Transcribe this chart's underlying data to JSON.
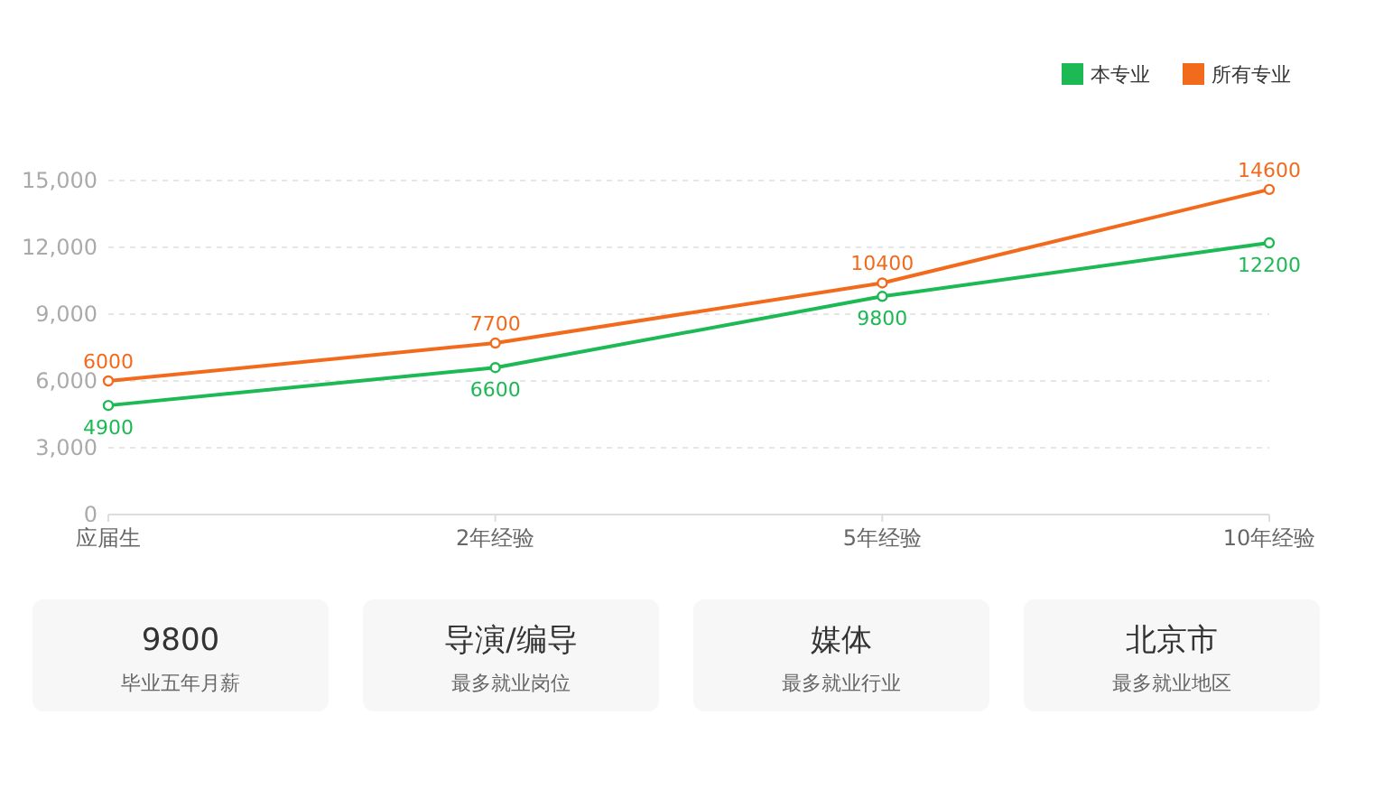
{
  "chart_data": [
    {
      "type": "line",
      "categories": [
        "应届生",
        "2年经验",
        "5年经验",
        "10年经验"
      ],
      "series": [
        {
          "name": "本专业",
          "color": "#1db954",
          "values": [
            4900,
            6600,
            9800,
            12200
          ]
        },
        {
          "name": "所有专业",
          "color": "#f26b1d",
          "values": [
            6000,
            7700,
            10400,
            14600
          ]
        }
      ],
      "ylim": [
        0,
        15000
      ],
      "yticks": [
        {
          "value": 0,
          "label": "0"
        },
        {
          "value": 3000,
          "label": "3,000"
        },
        {
          "value": 6000,
          "label": "6,000"
        },
        {
          "value": 9000,
          "label": "9,000"
        },
        {
          "value": 12000,
          "label": "12,000"
        },
        {
          "value": 15000,
          "label": "15,000"
        }
      ],
      "grid": "y",
      "legend": "top right",
      "marker": "circle",
      "line_style": "solid",
      "data_labels": true
    },
    {
      "type": "other",
      "annotations": [
        "9800",
        "毕业五年月薪",
        "导演/编导",
        "最多就业岗位",
        "媒体",
        "最多就业行业",
        "北京市",
        "最多就业地区"
      ]
    }
  ]
}
